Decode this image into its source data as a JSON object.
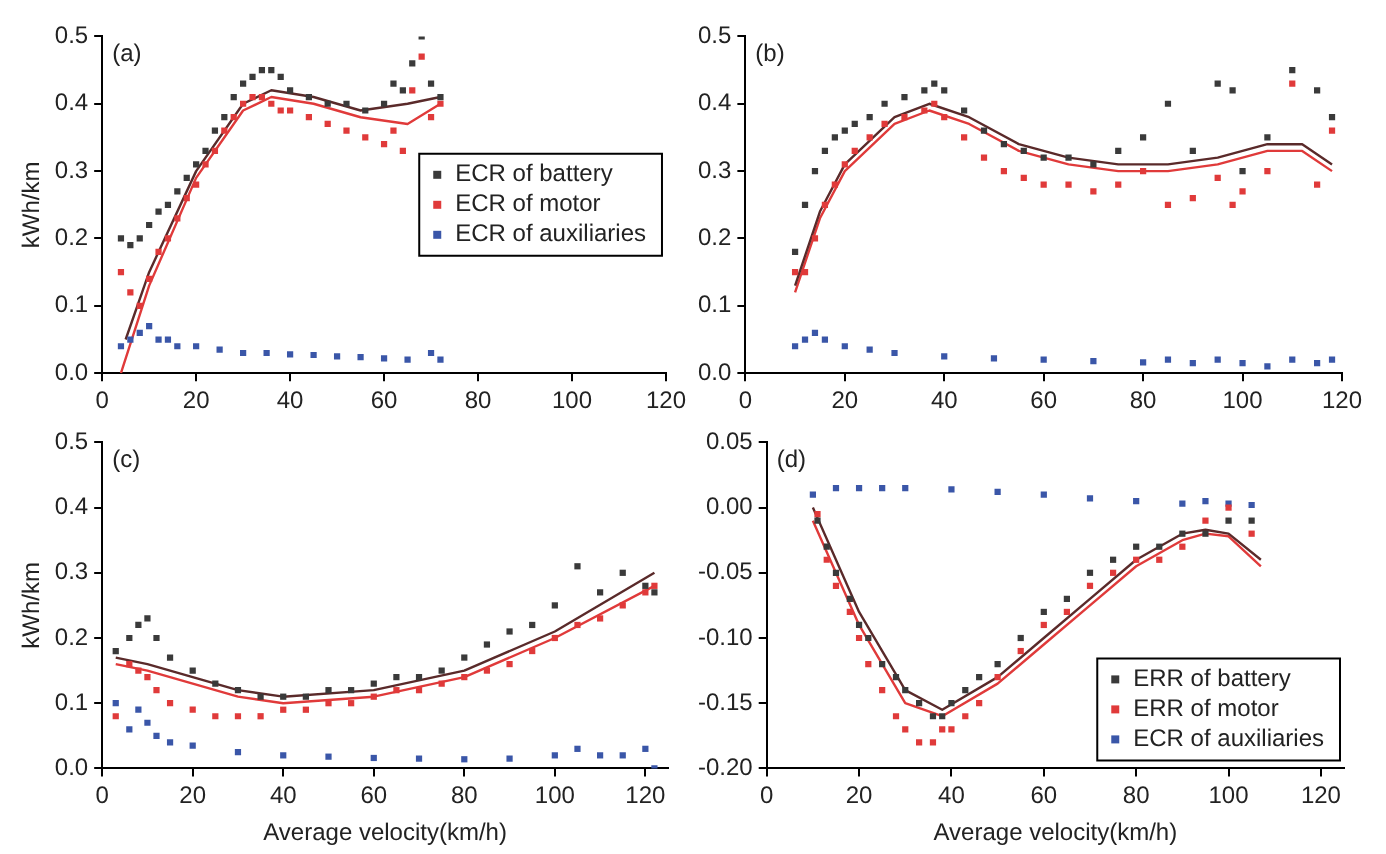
{
  "chart_data": [
    {
      "type": "scatter",
      "ylabel": "kWh/km",
      "annotations": [
        "(a)"
      ],
      "marker": "square",
      "legend": "right",
      "grid": false,
      "xlim": [
        0,
        120
      ],
      "xticks": [
        0,
        20,
        40,
        60,
        80,
        100,
        120
      ],
      "ylim": [
        0,
        0.5
      ],
      "yticks": [
        {
          "value": 0,
          "label": "0.0"
        },
        {
          "value": 0.1,
          "label": "0.1"
        },
        {
          "value": 0.2,
          "label": "0.2"
        },
        {
          "value": 0.3,
          "label": "0.3"
        },
        {
          "value": 0.4,
          "label": "0.4"
        },
        {
          "value": 0.5,
          "label": "0.5"
        }
      ],
      "series": [
        {
          "name": "ECR of battery",
          "color": "#3a3a3a",
          "x": [
            4,
            6,
            8,
            10,
            12,
            14,
            16,
            18,
            20,
            22,
            24,
            26,
            28,
            30,
            32,
            34,
            36,
            38,
            40,
            44,
            48,
            52,
            56,
            60,
            62,
            64,
            66,
            68,
            70,
            72
          ],
          "values": [
            0.2,
            0.19,
            0.2,
            0.22,
            0.24,
            0.25,
            0.27,
            0.29,
            0.31,
            0.33,
            0.36,
            0.38,
            0.41,
            0.43,
            0.44,
            0.45,
            0.45,
            0.44,
            0.42,
            0.41,
            0.4,
            0.4,
            0.39,
            0.4,
            0.43,
            0.42,
            0.46,
            0.5,
            0.43,
            0.41
          ]
        },
        {
          "name": "ECR of motor",
          "color": "#e03a3a",
          "x": [
            4,
            6,
            8,
            10,
            12,
            14,
            16,
            18,
            20,
            22,
            24,
            26,
            28,
            30,
            32,
            34,
            36,
            38,
            40,
            44,
            48,
            52,
            56,
            60,
            62,
            64,
            66,
            68,
            70,
            72
          ],
          "values": [
            0.15,
            0.12,
            0.1,
            0.14,
            0.18,
            0.2,
            0.23,
            0.26,
            0.28,
            0.31,
            0.33,
            0.36,
            0.38,
            0.4,
            0.41,
            0.41,
            0.4,
            0.39,
            0.39,
            0.38,
            0.37,
            0.36,
            0.35,
            0.34,
            0.36,
            0.33,
            0.42,
            0.47,
            0.38,
            0.4
          ]
        },
        {
          "name": "ECR of auxiliaries",
          "color": "#3a56a8",
          "x": [
            4,
            6,
            8,
            10,
            12,
            14,
            16,
            20,
            25,
            30,
            35,
            40,
            45,
            50,
            55,
            60,
            65,
            70,
            72
          ],
          "values": [
            0.04,
            0.05,
            0.06,
            0.07,
            0.05,
            0.05,
            0.04,
            0.04,
            0.035,
            0.03,
            0.03,
            0.028,
            0.027,
            0.025,
            0.024,
            0.022,
            0.02,
            0.03,
            0.02
          ]
        },
        {
          "type": "line",
          "marker": "none",
          "color": "#5a2a2a",
          "x": [
            5,
            10,
            20,
            30,
            36,
            45,
            55,
            65,
            72
          ],
          "values": [
            0.05,
            0.15,
            0.3,
            0.4,
            0.42,
            0.41,
            0.39,
            0.4,
            0.41
          ]
        },
        {
          "type": "line",
          "marker": "none",
          "color": "#e03a3a",
          "x": [
            4,
            10,
            20,
            30,
            36,
            45,
            55,
            65,
            72
          ],
          "values": [
            0.0,
            0.13,
            0.29,
            0.39,
            0.41,
            0.4,
            0.38,
            0.37,
            0.4
          ]
        }
      ]
    },
    {
      "type": "scatter",
      "annotations": [
        "(b)"
      ],
      "marker": "square",
      "grid": false,
      "xlim": [
        0,
        120
      ],
      "xticks": [
        0,
        20,
        40,
        60,
        80,
        100,
        120
      ],
      "ylim": [
        0,
        0.5
      ],
      "yticks": [
        {
          "value": 0,
          "label": "0.0"
        },
        {
          "value": 0.1,
          "label": "0.1"
        },
        {
          "value": 0.2,
          "label": "0.2"
        },
        {
          "value": 0.3,
          "label": "0.3"
        },
        {
          "value": 0.4,
          "label": "0.4"
        },
        {
          "value": 0.5,
          "label": "0.5"
        }
      ],
      "series": [
        {
          "color": "#3a3a3a",
          "x": [
            10,
            12,
            14,
            16,
            18,
            20,
            22,
            25,
            28,
            32,
            36,
            38,
            40,
            44,
            48,
            52,
            56,
            60,
            65,
            70,
            75,
            80,
            85,
            90,
            95,
            98,
            100,
            105,
            110,
            115,
            118
          ],
          "values": [
            0.18,
            0.25,
            0.3,
            0.33,
            0.35,
            0.36,
            0.37,
            0.38,
            0.4,
            0.41,
            0.42,
            0.43,
            0.42,
            0.39,
            0.36,
            0.34,
            0.33,
            0.32,
            0.32,
            0.31,
            0.33,
            0.35,
            0.4,
            0.33,
            0.43,
            0.42,
            0.3,
            0.35,
            0.45,
            0.42,
            0.38
          ]
        },
        {
          "color": "#e03a3a",
          "x": [
            10,
            12,
            14,
            16,
            18,
            20,
            22,
            25,
            28,
            32,
            36,
            38,
            40,
            44,
            48,
            52,
            56,
            60,
            65,
            70,
            75,
            80,
            85,
            90,
            95,
            98,
            100,
            105,
            110,
            115,
            118
          ],
          "values": [
            0.15,
            0.15,
            0.2,
            0.25,
            0.28,
            0.31,
            0.33,
            0.35,
            0.37,
            0.38,
            0.39,
            0.4,
            0.38,
            0.35,
            0.32,
            0.3,
            0.29,
            0.28,
            0.28,
            0.27,
            0.28,
            0.3,
            0.25,
            0.26,
            0.29,
            0.25,
            0.27,
            0.3,
            0.43,
            0.28,
            0.36
          ]
        },
        {
          "color": "#3a56a8",
          "x": [
            10,
            12,
            14,
            16,
            20,
            25,
            30,
            40,
            50,
            60,
            70,
            80,
            85,
            90,
            95,
            100,
            105,
            110,
            115,
            118
          ],
          "values": [
            0.04,
            0.05,
            0.06,
            0.05,
            0.04,
            0.035,
            0.03,
            0.025,
            0.022,
            0.02,
            0.018,
            0.016,
            0.02,
            0.015,
            0.02,
            0.015,
            0.01,
            0.02,
            0.015,
            0.02
          ]
        },
        {
          "type": "line",
          "marker": "none",
          "color": "#5a2a2a",
          "x": [
            10,
            15,
            20,
            30,
            37,
            45,
            55,
            65,
            75,
            85,
            95,
            105,
            112,
            118
          ],
          "values": [
            0.13,
            0.24,
            0.31,
            0.38,
            0.4,
            0.38,
            0.34,
            0.32,
            0.31,
            0.31,
            0.32,
            0.34,
            0.34,
            0.31
          ]
        },
        {
          "type": "line",
          "marker": "none",
          "color": "#e03a3a",
          "x": [
            10,
            15,
            20,
            30,
            37,
            45,
            55,
            65,
            75,
            85,
            95,
            105,
            112,
            118
          ],
          "values": [
            0.12,
            0.23,
            0.3,
            0.37,
            0.39,
            0.37,
            0.33,
            0.31,
            0.3,
            0.3,
            0.31,
            0.33,
            0.33,
            0.3
          ]
        }
      ]
    },
    {
      "type": "scatter",
      "xlabel": "Average velocity(km/h)",
      "ylabel": "kWh/km",
      "annotations": [
        "(c)"
      ],
      "marker": "square",
      "grid": false,
      "xlim": [
        0,
        125
      ],
      "xticks": [
        0,
        20,
        40,
        60,
        80,
        100,
        120
      ],
      "ylim": [
        0,
        0.5
      ],
      "yticks": [
        {
          "value": 0,
          "label": "0.0"
        },
        {
          "value": 0.1,
          "label": "0.1"
        },
        {
          "value": 0.2,
          "label": "0.2"
        },
        {
          "value": 0.3,
          "label": "0.3"
        },
        {
          "value": 0.4,
          "label": "0.4"
        },
        {
          "value": 0.5,
          "label": "0.5"
        }
      ],
      "series": [
        {
          "color": "#3a3a3a",
          "x": [
            3,
            6,
            8,
            10,
            12,
            15,
            20,
            25,
            30,
            35,
            40,
            45,
            50,
            55,
            60,
            65,
            70,
            75,
            80,
            85,
            90,
            95,
            100,
            105,
            110,
            115,
            120,
            122
          ],
          "values": [
            0.18,
            0.2,
            0.22,
            0.23,
            0.2,
            0.17,
            0.15,
            0.13,
            0.12,
            0.11,
            0.11,
            0.11,
            0.12,
            0.12,
            0.13,
            0.14,
            0.14,
            0.15,
            0.17,
            0.19,
            0.21,
            0.22,
            0.25,
            0.31,
            0.27,
            0.3,
            0.28,
            0.27
          ]
        },
        {
          "color": "#e03a3a",
          "x": [
            3,
            6,
            8,
            10,
            12,
            15,
            20,
            25,
            30,
            35,
            40,
            45,
            50,
            55,
            60,
            65,
            70,
            75,
            80,
            85,
            90,
            95,
            100,
            105,
            110,
            115,
            120,
            122
          ],
          "values": [
            0.08,
            0.16,
            0.15,
            0.14,
            0.12,
            0.1,
            0.09,
            0.08,
            0.08,
            0.08,
            0.09,
            0.09,
            0.1,
            0.1,
            0.11,
            0.12,
            0.12,
            0.13,
            0.14,
            0.15,
            0.16,
            0.18,
            0.2,
            0.22,
            0.23,
            0.25,
            0.27,
            0.28
          ]
        },
        {
          "color": "#3a56a8",
          "x": [
            3,
            6,
            8,
            10,
            12,
            15,
            20,
            30,
            40,
            50,
            60,
            70,
            80,
            90,
            100,
            105,
            110,
            115,
            120,
            122
          ],
          "values": [
            0.1,
            0.06,
            0.09,
            0.07,
            0.05,
            0.04,
            0.035,
            0.025,
            0.02,
            0.018,
            0.016,
            0.015,
            0.014,
            0.015,
            0.02,
            0.03,
            0.02,
            0.02,
            0.03,
            0.0
          ]
        },
        {
          "type": "line",
          "marker": "none",
          "color": "#5a2a2a",
          "x": [
            3,
            10,
            20,
            30,
            40,
            60,
            80,
            100,
            122
          ],
          "values": [
            0.17,
            0.16,
            0.14,
            0.12,
            0.11,
            0.12,
            0.15,
            0.21,
            0.3
          ]
        },
        {
          "type": "line",
          "marker": "none",
          "color": "#e03a3a",
          "x": [
            3,
            10,
            20,
            30,
            40,
            60,
            80,
            100,
            122
          ],
          "values": [
            0.16,
            0.15,
            0.13,
            0.11,
            0.1,
            0.11,
            0.14,
            0.2,
            0.28
          ]
        }
      ]
    },
    {
      "type": "scatter",
      "xlabel": "Average velocity(km/h)",
      "annotations": [
        "(d)"
      ],
      "marker": "square",
      "legend": "bottom right",
      "grid": false,
      "xlim": [
        0,
        125
      ],
      "xticks": [
        0,
        20,
        40,
        60,
        80,
        100,
        120
      ],
      "ylim": [
        -0.2,
        0.05
      ],
      "yticks": [
        {
          "value": -0.2,
          "label": "-0.20"
        },
        {
          "value": -0.15,
          "label": "-0.15"
        },
        {
          "value": -0.1,
          "label": "-0.10"
        },
        {
          "value": -0.05,
          "label": "-0.05"
        },
        {
          "value": 0,
          "label": "0.00"
        },
        {
          "value": 0.05,
          "label": "0.05"
        }
      ],
      "series": [
        {
          "name": "ERR of battery",
          "color": "#3a3a3a",
          "x": [
            11,
            13,
            15,
            18,
            20,
            22,
            25,
            28,
            30,
            33,
            36,
            38,
            40,
            43,
            46,
            50,
            55,
            60,
            65,
            70,
            75,
            80,
            85,
            90,
            95,
            100,
            105
          ],
          "values": [
            -0.01,
            -0.03,
            -0.05,
            -0.07,
            -0.09,
            -0.1,
            -0.12,
            -0.13,
            -0.14,
            -0.15,
            -0.16,
            -0.16,
            -0.15,
            -0.14,
            -0.13,
            -0.12,
            -0.1,
            -0.08,
            -0.07,
            -0.05,
            -0.04,
            -0.03,
            -0.03,
            -0.02,
            -0.02,
            -0.01,
            -0.01
          ]
        },
        {
          "name": "ERR of motor",
          "color": "#e03a3a",
          "x": [
            11,
            13,
            15,
            18,
            20,
            22,
            25,
            28,
            30,
            33,
            36,
            38,
            40,
            43,
            46,
            50,
            55,
            60,
            65,
            70,
            75,
            80,
            85,
            90,
            95,
            100,
            105
          ],
          "values": [
            -0.005,
            -0.04,
            -0.06,
            -0.08,
            -0.1,
            -0.12,
            -0.14,
            -0.16,
            -0.17,
            -0.18,
            -0.18,
            -0.17,
            -0.17,
            -0.16,
            -0.15,
            -0.13,
            -0.11,
            -0.09,
            -0.08,
            -0.06,
            -0.05,
            -0.04,
            -0.04,
            -0.03,
            -0.01,
            0.0,
            -0.02
          ]
        },
        {
          "name": "ECR of auxiliaries",
          "color": "#3a56a8",
          "x": [
            10,
            15,
            20,
            25,
            30,
            40,
            50,
            60,
            70,
            80,
            90,
            95,
            100,
            105
          ],
          "values": [
            0.01,
            0.015,
            0.015,
            0.015,
            0.015,
            0.014,
            0.012,
            0.01,
            0.007,
            0.005,
            0.003,
            0.005,
            0.003,
            0.002
          ]
        },
        {
          "type": "line",
          "marker": "none",
          "color": "#5a2a2a",
          "x": [
            10,
            20,
            30,
            38,
            50,
            60,
            70,
            80,
            90,
            95,
            100,
            107
          ],
          "values": [
            0.0,
            -0.08,
            -0.14,
            -0.155,
            -0.13,
            -0.1,
            -0.07,
            -0.04,
            -0.02,
            -0.017,
            -0.02,
            -0.04
          ]
        },
        {
          "type": "line",
          "marker": "none",
          "color": "#e03a3a",
          "x": [
            10,
            20,
            30,
            38,
            50,
            60,
            70,
            80,
            90,
            95,
            100,
            107
          ],
          "values": [
            -0.01,
            -0.09,
            -0.15,
            -0.16,
            -0.135,
            -0.105,
            -0.075,
            -0.045,
            -0.025,
            -0.02,
            -0.022,
            -0.045
          ]
        }
      ]
    }
  ]
}
